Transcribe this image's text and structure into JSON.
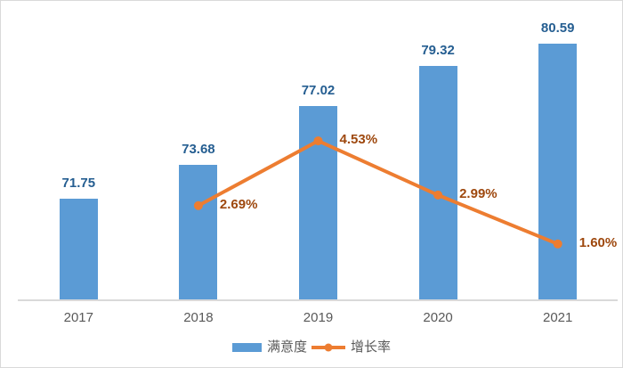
{
  "chart_data": {
    "type": "combo-bar-line",
    "categories": [
      "2017",
      "2018",
      "2019",
      "2020",
      "2021"
    ],
    "series": [
      {
        "name": "满意度",
        "type": "bar",
        "axis": "primary",
        "values": [
          71.75,
          73.68,
          77.02,
          79.32,
          80.59
        ],
        "data_labels": [
          "71.75",
          "73.68",
          "77.02",
          "79.32",
          "80.59"
        ],
        "color": "#5B9BD5",
        "label_color": "#255E91"
      },
      {
        "name": "增长率",
        "type": "line",
        "axis": "secondary",
        "values": [
          null,
          2.69,
          4.53,
          2.99,
          1.6
        ],
        "data_labels": [
          null,
          "2.69%",
          "4.53%",
          "2.99%",
          "1.60%"
        ],
        "color": "#ED7D31",
        "label_color": "#9E480E"
      }
    ],
    "y1lim": [
      66,
      82
    ],
    "y2lim": [
      0,
      8
    ],
    "grid": false,
    "legend_position": "bottom",
    "axis_line_color": "#D9D9D9",
    "tick_label_color": "#595959",
    "legend_text_color": "#595959",
    "background": "#FFFFFF",
    "border_color": "#D9D9D9"
  }
}
